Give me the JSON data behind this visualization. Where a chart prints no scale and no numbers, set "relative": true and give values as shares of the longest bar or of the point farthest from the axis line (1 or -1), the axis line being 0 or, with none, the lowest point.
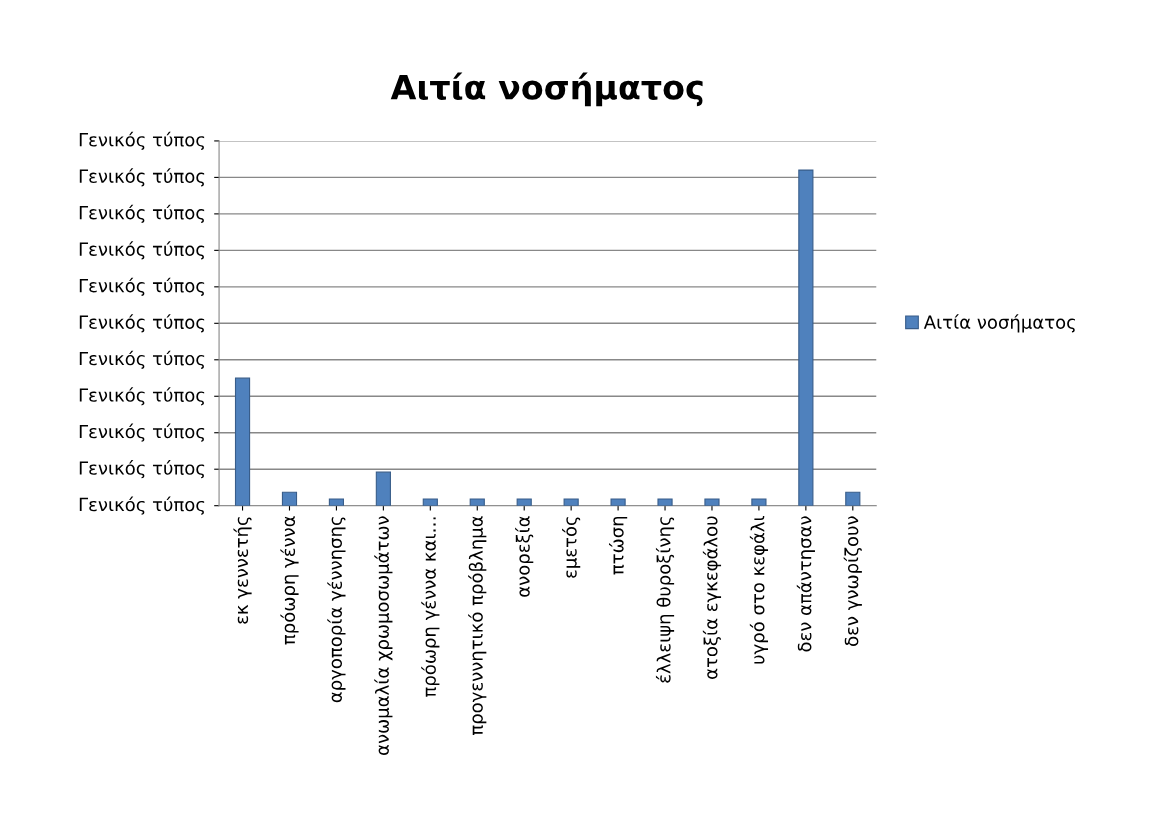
{
  "chart_data": {
    "type": "bar",
    "title": "Αιτία νοσήματος",
    "relative": true,
    "categories": [
      "εκ γεννετής",
      "πρόωρη γέννα",
      "αργοπορία γέννησης",
      "ανωμαλία χρωμοσωμάτων",
      "πρόωρη γέννα και…",
      "προγεννητικό πρόβλημα",
      "ανορεξία",
      "εμετός",
      "πτώση",
      "έλλειψη θυροξίνης",
      "ατοξία εγκεφάλου",
      "υγρό στο κεφάλι",
      "δεν απάντησαν",
      "δεν γνωρίζουν"
    ],
    "series": [
      {
        "name": "Αιτία νοσήματος",
        "color": "#4f81bd",
        "values": [
          0.38,
          0.04,
          0.02,
          0.1,
          0.02,
          0.02,
          0.02,
          0.02,
          0.02,
          0.02,
          0.02,
          0.02,
          1,
          0.04
        ]
      }
    ],
    "annotations": [
      "Γενικός τύπος",
      "Γενικός τύπος",
      "Γενικός τύπος",
      "Γενικός τύπος",
      "Γενικός τύπος",
      "Γενικός τύπος",
      "Γενικός τύπος",
      "Γενικός τύπος",
      "Γενικός τύπος",
      "Γενικός τύπος",
      "Γενικός τύπος"
    ],
    "grid": "y",
    "legend": "right"
  }
}
